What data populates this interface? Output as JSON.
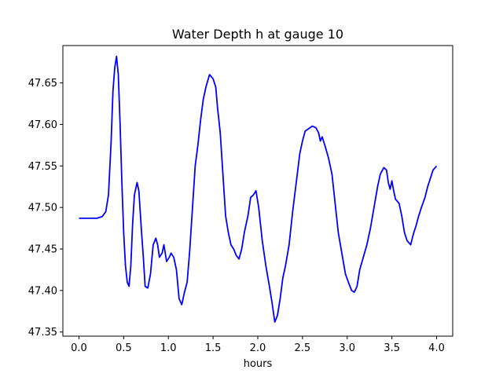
{
  "chart_data": {
    "type": "line",
    "title": "Water Depth h at gauge 10",
    "xlabel": "hours",
    "ylabel": "",
    "xlim": [
      -0.18,
      4.18
    ],
    "ylim": [
      47.345,
      47.695
    ],
    "xticks": [
      "0.0",
      "0.5",
      "1.0",
      "1.5",
      "2.0",
      "2.5",
      "3.0",
      "3.5",
      "4.0"
    ],
    "yticks": [
      "47.35",
      "47.40",
      "47.45",
      "47.50",
      "47.55",
      "47.60",
      "47.65"
    ],
    "grid": false,
    "series": [
      {
        "color": "#0000ff",
        "points": [
          [
            0.0,
            47.487
          ],
          [
            0.1,
            47.487
          ],
          [
            0.2,
            47.487
          ],
          [
            0.26,
            47.489
          ],
          [
            0.3,
            47.495
          ],
          [
            0.33,
            47.515
          ],
          [
            0.36,
            47.58
          ],
          [
            0.38,
            47.64
          ],
          [
            0.4,
            47.668
          ],
          [
            0.42,
            47.682
          ],
          [
            0.44,
            47.66
          ],
          [
            0.46,
            47.6
          ],
          [
            0.48,
            47.53
          ],
          [
            0.5,
            47.47
          ],
          [
            0.52,
            47.43
          ],
          [
            0.54,
            47.41
          ],
          [
            0.56,
            47.405
          ],
          [
            0.58,
            47.43
          ],
          [
            0.6,
            47.48
          ],
          [
            0.62,
            47.515
          ],
          [
            0.65,
            47.53
          ],
          [
            0.67,
            47.52
          ],
          [
            0.7,
            47.47
          ],
          [
            0.72,
            47.44
          ],
          [
            0.74,
            47.405
          ],
          [
            0.77,
            47.403
          ],
          [
            0.8,
            47.42
          ],
          [
            0.83,
            47.455
          ],
          [
            0.86,
            47.463
          ],
          [
            0.88,
            47.455
          ],
          [
            0.9,
            47.44
          ],
          [
            0.93,
            47.445
          ],
          [
            0.95,
            47.455
          ],
          [
            0.98,
            47.435
          ],
          [
            1.01,
            47.44
          ],
          [
            1.03,
            47.445
          ],
          [
            1.06,
            47.44
          ],
          [
            1.09,
            47.425
          ],
          [
            1.12,
            47.39
          ],
          [
            1.15,
            47.383
          ],
          [
            1.18,
            47.398
          ],
          [
            1.21,
            47.41
          ],
          [
            1.24,
            47.45
          ],
          [
            1.27,
            47.5
          ],
          [
            1.3,
            47.55
          ],
          [
            1.33,
            47.575
          ],
          [
            1.36,
            47.605
          ],
          [
            1.39,
            47.63
          ],
          [
            1.42,
            47.645
          ],
          [
            1.46,
            47.66
          ],
          [
            1.5,
            47.655
          ],
          [
            1.53,
            47.645
          ],
          [
            1.55,
            47.62
          ],
          [
            1.58,
            47.59
          ],
          [
            1.61,
            47.54
          ],
          [
            1.64,
            47.49
          ],
          [
            1.67,
            47.47
          ],
          [
            1.7,
            47.455
          ],
          [
            1.73,
            47.45
          ],
          [
            1.76,
            47.442
          ],
          [
            1.79,
            47.438
          ],
          [
            1.82,
            47.45
          ],
          [
            1.85,
            47.47
          ],
          [
            1.89,
            47.49
          ],
          [
            1.92,
            47.512
          ],
          [
            1.95,
            47.515
          ],
          [
            1.98,
            47.52
          ],
          [
            2.01,
            47.5
          ],
          [
            2.05,
            47.46
          ],
          [
            2.09,
            47.43
          ],
          [
            2.13,
            47.405
          ],
          [
            2.16,
            47.385
          ],
          [
            2.19,
            47.362
          ],
          [
            2.22,
            47.37
          ],
          [
            2.25,
            47.39
          ],
          [
            2.28,
            47.415
          ],
          [
            2.31,
            47.43
          ],
          [
            2.35,
            47.455
          ],
          [
            2.39,
            47.495
          ],
          [
            2.43,
            47.53
          ],
          [
            2.47,
            47.565
          ],
          [
            2.5,
            47.58
          ],
          [
            2.53,
            47.592
          ],
          [
            2.57,
            47.595
          ],
          [
            2.61,
            47.598
          ],
          [
            2.65,
            47.596
          ],
          [
            2.68,
            47.59
          ],
          [
            2.7,
            47.58
          ],
          [
            2.72,
            47.585
          ],
          [
            2.75,
            47.575
          ],
          [
            2.79,
            47.56
          ],
          [
            2.83,
            47.54
          ],
          [
            2.86,
            47.51
          ],
          [
            2.9,
            47.47
          ],
          [
            2.94,
            47.445
          ],
          [
            2.98,
            47.42
          ],
          [
            3.02,
            47.408
          ],
          [
            3.05,
            47.4
          ],
          [
            3.08,
            47.398
          ],
          [
            3.11,
            47.405
          ],
          [
            3.14,
            47.425
          ],
          [
            3.18,
            47.44
          ],
          [
            3.22,
            47.455
          ],
          [
            3.26,
            47.475
          ],
          [
            3.3,
            47.5
          ],
          [
            3.34,
            47.525
          ],
          [
            3.37,
            47.54
          ],
          [
            3.41,
            47.548
          ],
          [
            3.44,
            47.545
          ],
          [
            3.46,
            47.53
          ],
          [
            3.48,
            47.522
          ],
          [
            3.5,
            47.532
          ],
          [
            3.52,
            47.52
          ],
          [
            3.54,
            47.51
          ],
          [
            3.58,
            47.505
          ],
          [
            3.61,
            47.49
          ],
          [
            3.64,
            47.47
          ],
          [
            3.67,
            47.46
          ],
          [
            3.71,
            47.455
          ],
          [
            3.74,
            47.468
          ],
          [
            3.77,
            47.478
          ],
          [
            3.8,
            47.49
          ],
          [
            3.83,
            47.5
          ],
          [
            3.87,
            47.512
          ],
          [
            3.9,
            47.525
          ],
          [
            3.93,
            47.535
          ],
          [
            3.96,
            47.545
          ],
          [
            4.0,
            47.55
          ]
        ]
      }
    ]
  }
}
